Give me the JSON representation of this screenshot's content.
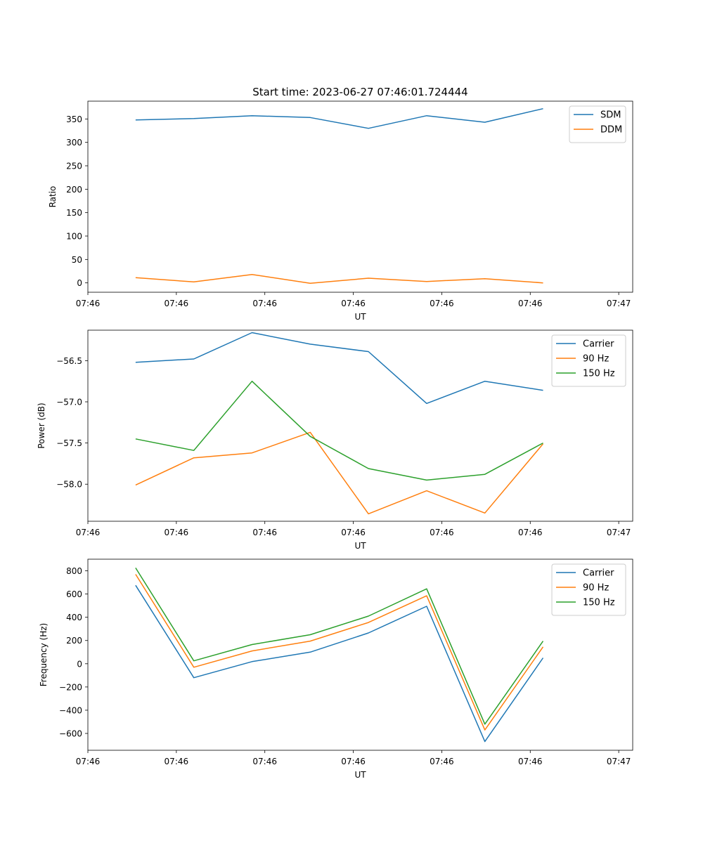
{
  "figure": {
    "title": "Start time: 2023-06-27 07:46:01.724444"
  },
  "chart_data": [
    {
      "type": "line",
      "xlabel": "UT",
      "ylabel": "Ratio",
      "x": [
        1,
        2,
        3,
        4,
        5,
        6,
        7,
        8
      ],
      "xticks": [
        "07:46",
        "07:46",
        "07:46",
        "07:46",
        "07:46",
        "07:46",
        "07:47"
      ],
      "xlim": [
        0.18,
        9.54
      ],
      "ylim": [
        -20,
        388
      ],
      "yticks": [
        0,
        50,
        100,
        150,
        200,
        250,
        300,
        350
      ],
      "legend": "top-right",
      "series": [
        {
          "name": "SDM",
          "color": "#1f77b4",
          "values": [
            348,
            351,
            357,
            353,
            330,
            357,
            343,
            372
          ]
        },
        {
          "name": "DDM",
          "color": "#ff7f0e",
          "values": [
            11,
            2,
            18,
            -1,
            10,
            3,
            9,
            0
          ]
        }
      ]
    },
    {
      "type": "line",
      "xlabel": "UT",
      "ylabel": "Power (dB)",
      "x": [
        1,
        2,
        3,
        4,
        5,
        6,
        7,
        8
      ],
      "xticks": [
        "07:46",
        "07:46",
        "07:46",
        "07:46",
        "07:46",
        "07:46",
        "07:47"
      ],
      "xlim": [
        0.18,
        9.54
      ],
      "ylim": [
        -58.45,
        -56.13
      ],
      "yticks": [
        -56.5,
        -57.0,
        -57.5,
        -58.0
      ],
      "legend": "top-right",
      "series": [
        {
          "name": "Carrier",
          "color": "#1f77b4",
          "values": [
            -56.52,
            -56.48,
            -56.16,
            -56.3,
            -56.39,
            -57.02,
            -56.75,
            -56.86
          ]
        },
        {
          "name": "90 Hz",
          "color": "#ff7f0e",
          "values": [
            -58.01,
            -57.68,
            -57.62,
            -57.37,
            -58.36,
            -58.08,
            -58.35,
            -57.51
          ]
        },
        {
          "name": "150 Hz",
          "color": "#2ca02c",
          "values": [
            -57.45,
            -57.59,
            -56.75,
            -57.42,
            -57.81,
            -57.95,
            -57.88,
            -57.5
          ]
        }
      ]
    },
    {
      "type": "line",
      "xlabel": "UT",
      "ylabel": "Frequency (Hz)",
      "x": [
        1,
        2,
        3,
        4,
        5,
        6,
        7,
        8
      ],
      "xticks": [
        "07:46",
        "07:46",
        "07:46",
        "07:46",
        "07:46",
        "07:46",
        "07:47"
      ],
      "xlim": [
        0.18,
        9.54
      ],
      "ylim": [
        -745,
        900
      ],
      "yticks": [
        800,
        600,
        400,
        200,
        0,
        -200,
        -400,
        -600
      ],
      "legend": "top-right",
      "series": [
        {
          "name": "Carrier",
          "color": "#1f77b4",
          "values": [
            675,
            -120,
            18,
            100,
            265,
            495,
            -670,
            50
          ]
        },
        {
          "name": "90 Hz",
          "color": "#ff7f0e",
          "values": [
            770,
            -30,
            110,
            195,
            355,
            585,
            -570,
            145
          ]
        },
        {
          "name": "150 Hz",
          "color": "#2ca02c",
          "values": [
            825,
            25,
            165,
            250,
            410,
            645,
            -520,
            195
          ]
        }
      ]
    }
  ]
}
